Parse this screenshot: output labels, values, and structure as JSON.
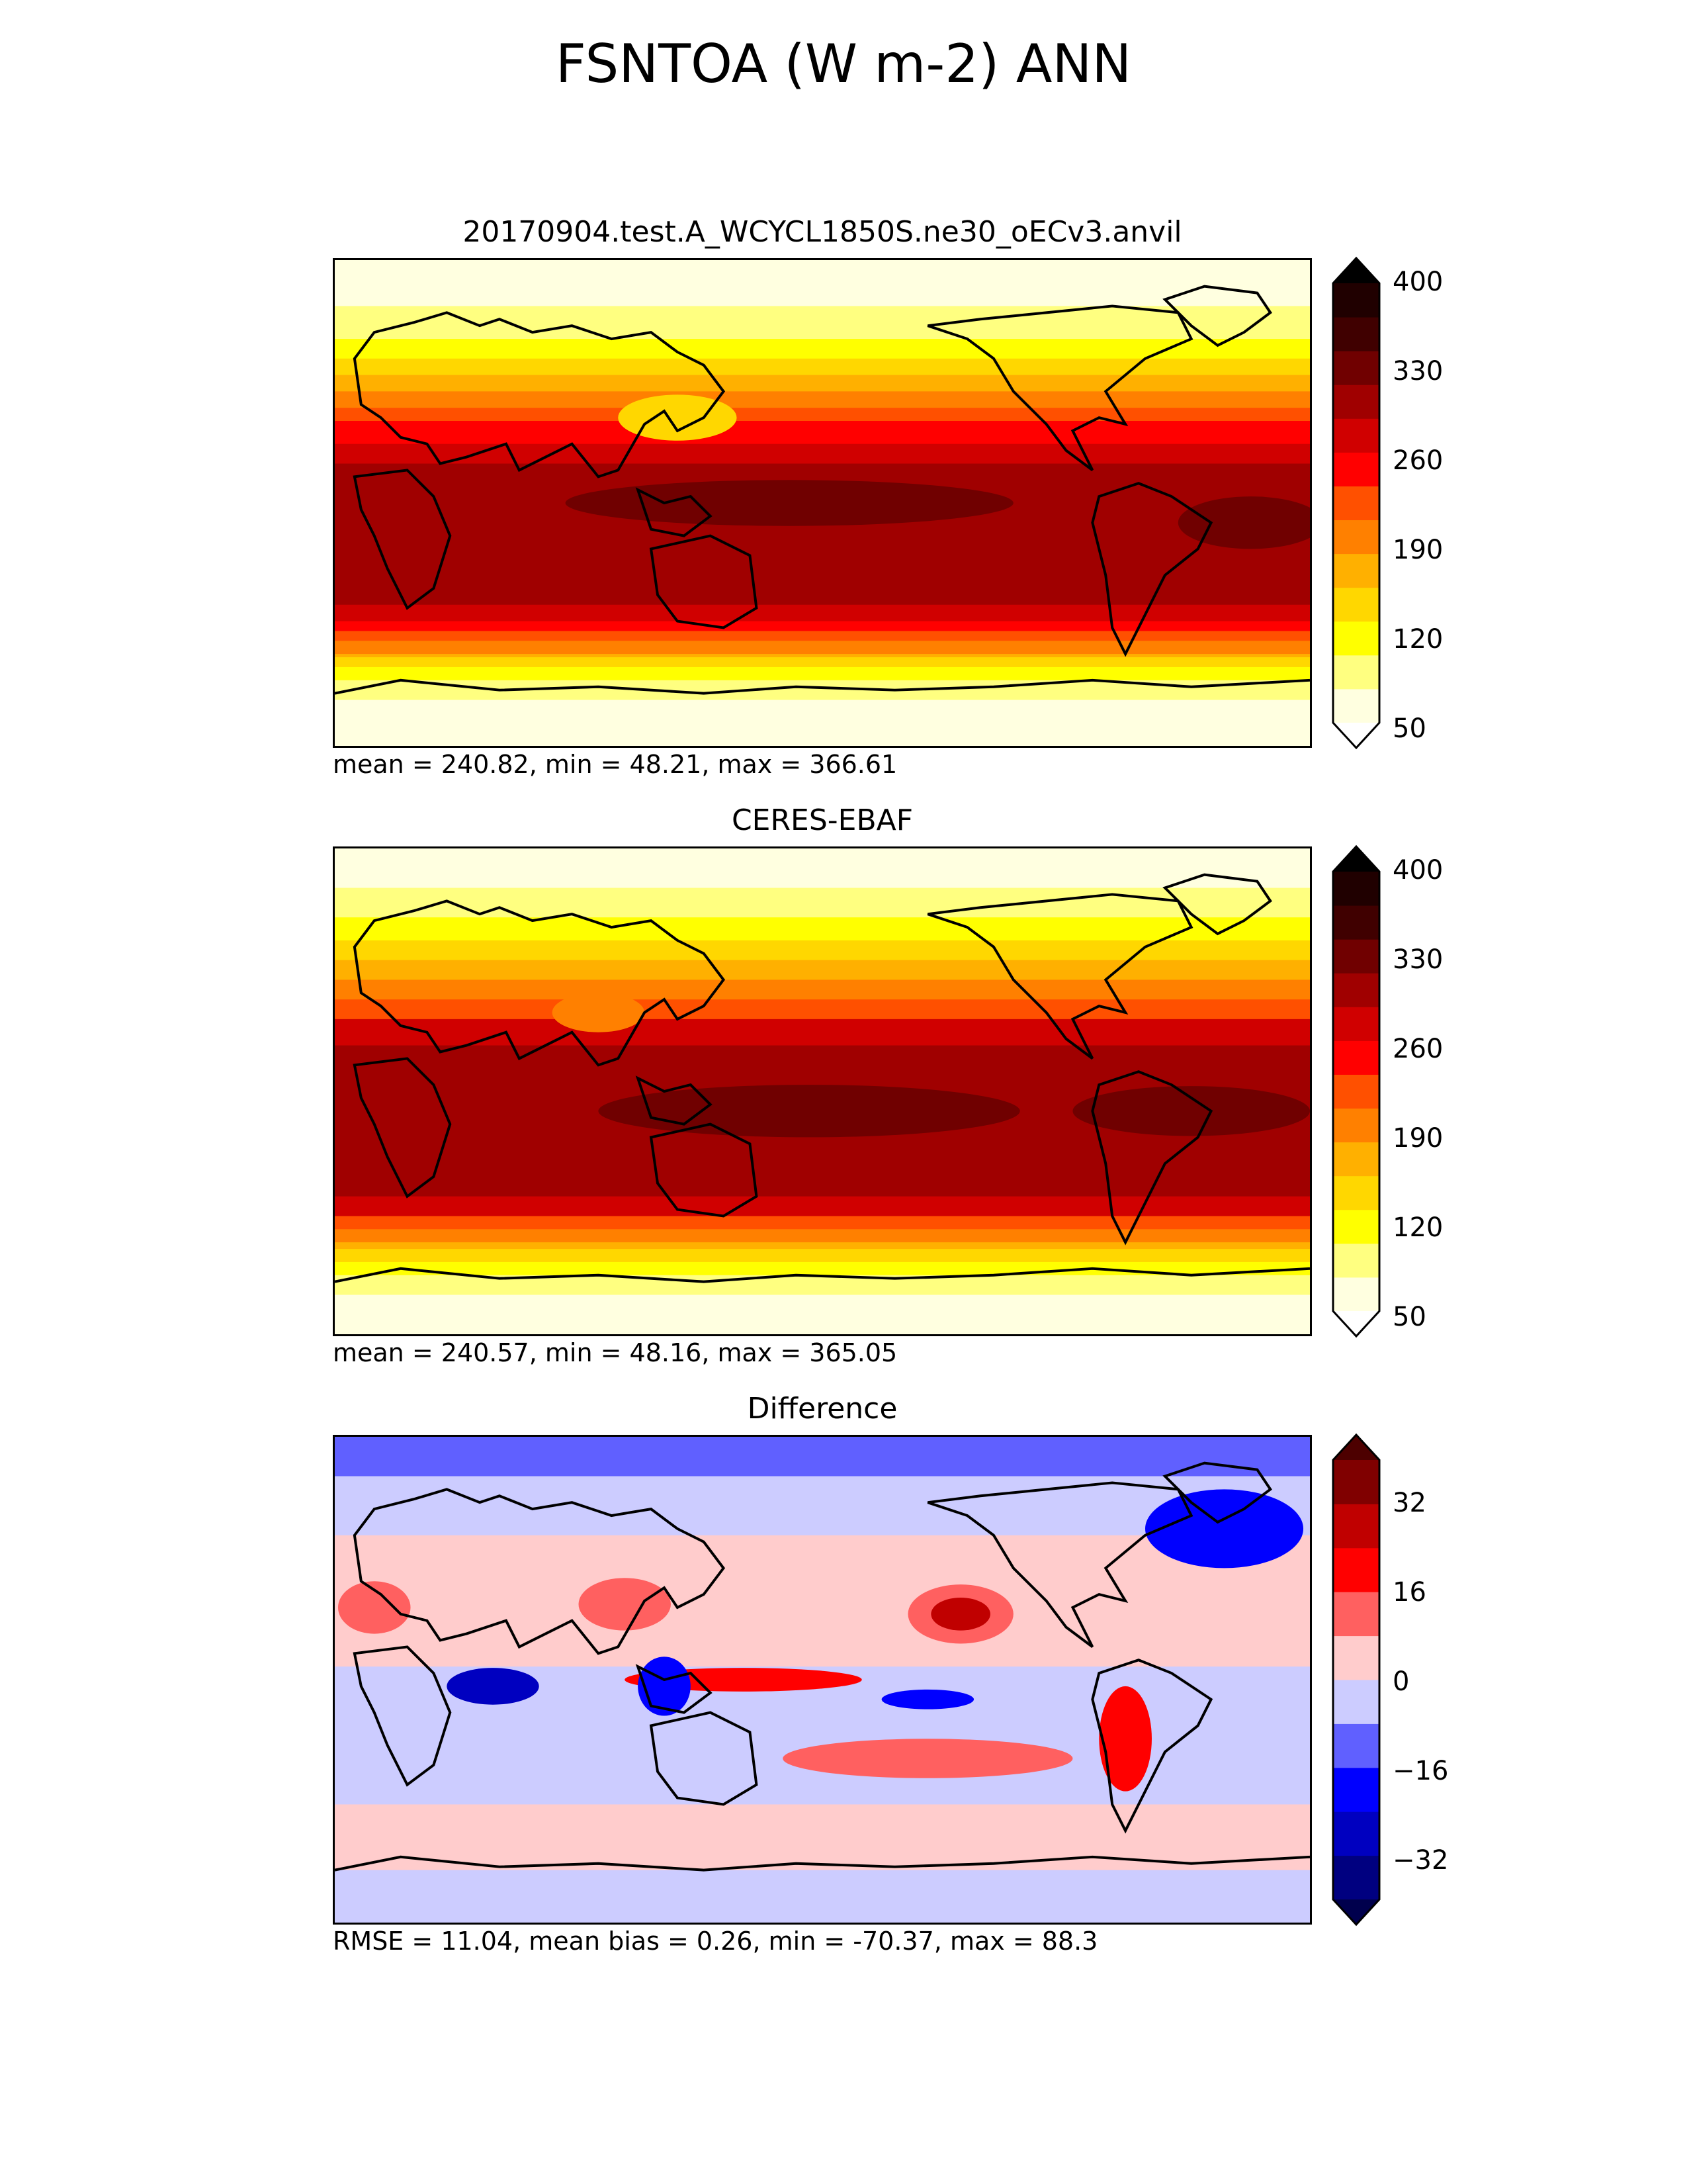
{
  "title": "FSNTOA (W m-2) ANN",
  "panels": [
    {
      "id": "test",
      "title": "20170904.test.A_WCYCL1850S.ne30_oECv3.anvil",
      "stats": "mean = 240.82, min = 48.21, max = 366.61",
      "colorbar": {
        "ticks": [
          "400",
          "330",
          "260",
          "190",
          "120",
          "50"
        ],
        "levels": [
          50,
          400
        ],
        "extend": "both",
        "colors": [
          "#ffffe0",
          "#ffff80",
          "#ffff00",
          "#ffd700",
          "#ffb000",
          "#ff8000",
          "#ff5000",
          "#ff0000",
          "#d00000",
          "#a00000",
          "#700000",
          "#400000",
          "#200000"
        ],
        "under_color": "#ffffff",
        "over_color": "#000000"
      }
    },
    {
      "id": "reference",
      "title": "CERES-EBAF",
      "stats": "mean = 240.57, min = 48.16, max = 365.05",
      "colorbar": {
        "ticks": [
          "400",
          "330",
          "260",
          "190",
          "120",
          "50"
        ],
        "levels": [
          50,
          400
        ],
        "extend": "both",
        "colors": [
          "#ffffe0",
          "#ffff80",
          "#ffff00",
          "#ffd700",
          "#ffb000",
          "#ff8000",
          "#ff5000",
          "#ff0000",
          "#d00000",
          "#a00000",
          "#700000",
          "#400000",
          "#200000"
        ],
        "under_color": "#ffffff",
        "over_color": "#000000"
      }
    },
    {
      "id": "difference",
      "title": "Difference",
      "stats": "RMSE = 11.04, mean bias = 0.26, min = -70.37, max = 88.3",
      "colorbar": {
        "ticks": [
          "32",
          "16",
          "0",
          "−16",
          "−32"
        ],
        "levels": [
          -40,
          40
        ],
        "extend": "both",
        "colors": [
          "#000080",
          "#0000c0",
          "#0000ff",
          "#6060ff",
          "#ccccff",
          "#ffcccc",
          "#ff6060",
          "#ff0000",
          "#c00000",
          "#800000"
        ],
        "under_color": "#00004d",
        "over_color": "#4d0000"
      }
    }
  ]
}
